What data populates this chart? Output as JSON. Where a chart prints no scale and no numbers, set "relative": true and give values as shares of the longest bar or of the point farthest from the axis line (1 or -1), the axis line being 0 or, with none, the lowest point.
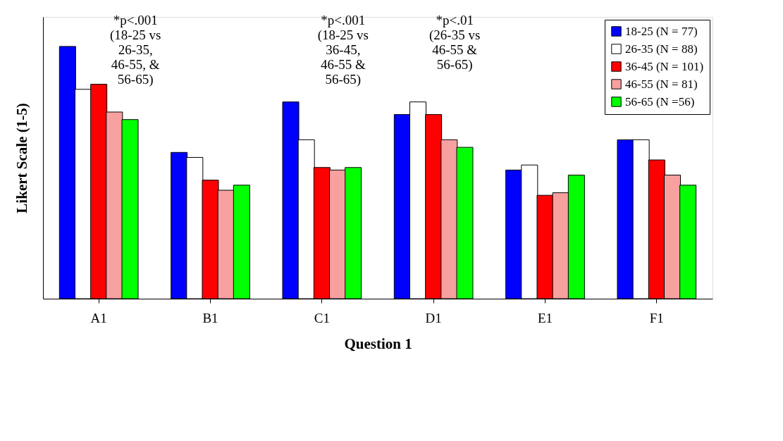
{
  "chart_data": {
    "type": "bar",
    "relative": true,
    "xlabel": "Question 1",
    "ylabel": "Likert Scale (1-5)",
    "categories": [
      "A1",
      "B1",
      "C1",
      "D1",
      "E1",
      "F1"
    ],
    "series": [
      {
        "name": "18-25 (N = 77)",
        "color": "#0000ff",
        "values": [
          1.0,
          0.58,
          0.78,
          0.73,
          0.51,
          0.63
        ]
      },
      {
        "name": "26-35 (N = 88)",
        "color": "#ffffff",
        "values": [
          0.83,
          0.56,
          0.63,
          0.78,
          0.53,
          0.63
        ]
      },
      {
        "name": "36-45 (N = 101)",
        "color": "#ff0000",
        "values": [
          0.85,
          0.47,
          0.52,
          0.73,
          0.41,
          0.55
        ]
      },
      {
        "name": "46-55 (N = 81)",
        "color": "#f7a0a0",
        "values": [
          0.74,
          0.43,
          0.51,
          0.63,
          0.42,
          0.49
        ]
      },
      {
        "name": "56-65 (N =56)",
        "color": "#00ff00",
        "values": [
          0.71,
          0.45,
          0.52,
          0.6,
          0.49,
          0.45
        ]
      }
    ],
    "annotations": [
      "*p<.001\n(18-25 vs\n26-35,\n46-55, &\n56-65)",
      "*p<.001\n(18-25 vs\n36-45,\n46-55 &\n56-65)",
      "*p<.01\n(26-35 vs\n46-55 &\n56-65)"
    ],
    "legend": "top right",
    "grid": false
  }
}
